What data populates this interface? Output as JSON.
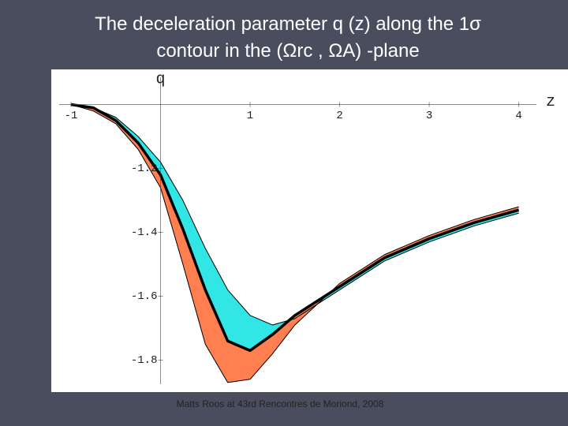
{
  "chart_data": {
    "type": "band",
    "title_lines": [
      "The deceleration parameter q (z) along the 1σ",
      "contour in the (Ωrc , ΩA) -plane"
    ],
    "x_label": "z",
    "y_label": "q",
    "footer": "Matts Roos at 43rd Rencontres de Moriond, 2008",
    "x": [
      -1,
      -0.75,
      -0.5,
      -0.25,
      0,
      0.25,
      0.5,
      0.75,
      1,
      1.25,
      1.5,
      2,
      2.5,
      3,
      3.5,
      4
    ],
    "series": [
      {
        "color": "#000000",
        "fill": "#33e6e6",
        "fill_to": 1,
        "width": 1,
        "values": [
          -1.0,
          -1.01,
          -1.04,
          -1.1,
          -1.18,
          -1.3,
          -1.45,
          -1.58,
          -1.66,
          -1.69,
          -1.67,
          -1.58,
          -1.49,
          -1.43,
          -1.38,
          -1.34
        ]
      },
      {
        "color": "#000000",
        "width": 3.5,
        "values": [
          -1.0,
          -1.01,
          -1.05,
          -1.12,
          -1.22,
          -1.39,
          -1.58,
          -1.74,
          -1.77,
          -1.72,
          -1.66,
          -1.57,
          -1.48,
          -1.42,
          -1.37,
          -1.33
        ]
      },
      {
        "color": "#000000",
        "fill": "#ff7f50",
        "fill_to": 1,
        "width": 1,
        "values": [
          -1.0,
          -1.02,
          -1.06,
          -1.14,
          -1.26,
          -1.5,
          -1.75,
          -1.87,
          -1.86,
          -1.78,
          -1.69,
          -1.56,
          -1.47,
          -1.41,
          -1.36,
          -1.32
        ]
      }
    ],
    "xlim": [
      -1.22,
      4.55
    ],
    "ylim": [
      -1.9,
      -0.89
    ],
    "xticks": [
      -1,
      1,
      2,
      3,
      4
    ],
    "yticks": [
      -1.2,
      -1.4,
      -1.6,
      -1.8
    ],
    "axes_origin": [
      0,
      -1
    ],
    "grid": false
  }
}
